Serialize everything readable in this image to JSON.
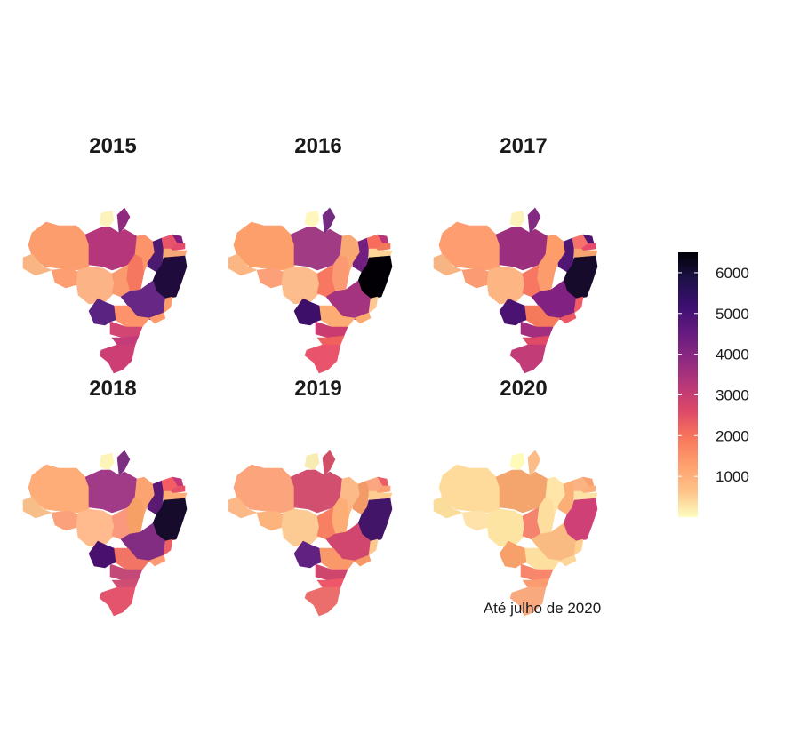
{
  "panels": [
    {
      "year": "2015",
      "fills": [
        "#fcf3bb",
        "#fc9d6d",
        "#f9b584",
        "#fd9e72",
        "#fcb487",
        "#b5367a",
        "#8f2a7f",
        "#f57760",
        "#fc9369",
        "#4d1a72",
        "#e8556b",
        "#821c7c",
        "#e34a6c",
        "#f8a777",
        "#200c3c",
        "#fc9a6f",
        "#662785",
        "#fd9e6a",
        "#fe9a6e",
        "#fd926b",
        "#d24674",
        "#5b2381",
        "#c53b7a",
        "#cd3e75"
      ]
    },
    {
      "year": "2016",
      "fills": [
        "#fff7bc",
        "#fc9f6a",
        "#fcb684",
        "#fca079",
        "#fcbc8b",
        "#a03b84",
        "#732b82",
        "#fb9a72",
        "#f9a873",
        "#721f81",
        "#f76c5c",
        "#b63679",
        "#f2785a",
        "#fed596",
        "#020005",
        "#f77760",
        "#a4347f",
        "#fec790",
        "#fcab70",
        "#fdac73",
        "#ca3c6f",
        "#3e0f68",
        "#f0615d",
        "#e9546c"
      ]
    },
    {
      "year": "2017",
      "fills": [
        "#fcf3bc",
        "#fd9d70",
        "#f8b584",
        "#fb9b73",
        "#fdb584",
        "#9b2f7d",
        "#832b82",
        "#fc9c6c",
        "#fe9c6a",
        "#511574",
        "#f5716b",
        "#4e1373",
        "#e64b6b",
        "#f8a46f",
        "#160b2b",
        "#f77763",
        "#812181",
        "#f15d66",
        "#ec5865",
        "#f57a5c",
        "#a32e7f",
        "#4a1271",
        "#e14964",
        "#c23c78"
      ]
    },
    {
      "year": "2018",
      "fills": [
        "#fdf4b7",
        "#feac78",
        "#f8be8a",
        "#fba27c",
        "#ffbb8d",
        "#a13a87",
        "#7d2f82",
        "#f6a066",
        "#fba471",
        "#5a1a74",
        "#f45d63",
        "#c2387a",
        "#e55168",
        "#fdad76",
        "#160b2b",
        "#f9987c",
        "#822d82",
        "#ed6166",
        "#fe9a73",
        "#f27465",
        "#c34978",
        "#4a106d",
        "#cf4d73",
        "#e5546d"
      ]
    },
    {
      "year": "2019",
      "fills": [
        "#f8ecb3",
        "#fca57c",
        "#fcb987",
        "#fdb37c",
        "#fccb94",
        "#d24f70",
        "#d14e67",
        "#fdae76",
        "#fbba87",
        "#f39b68",
        "#fba581",
        "#e85e67",
        "#fba072",
        "#fecd90",
        "#421569",
        "#f78063",
        "#d0466f",
        "#fec88c",
        "#f79867",
        "#fa9869",
        "#ce466e",
        "#602181",
        "#ee5769",
        "#eb6e6c"
      ]
    },
    {
      "year": "2020",
      "fills": [
        "#fefbb9",
        "#fedb9b",
        "#fbdd9b",
        "#ffe2a9",
        "#fde4a3",
        "#f3a56d",
        "#fbbc85",
        "#fede9e",
        "#ffe6a8",
        "#fbae75",
        "#fbb383",
        "#f8a173",
        "#fdaf7b",
        "#fde2a8",
        "#cf4176",
        "#f5846e",
        "#f9bb82",
        "#fed092",
        "#fed598",
        "#fde0a0",
        "#f7866d",
        "#f8a06a",
        "#fb9c70",
        "#f9a97e"
      ]
    }
  ],
  "caption": "Até julho de 2020",
  "legend": {
    "ticks": [
      {
        "value": 1000,
        "label": "1000"
      },
      {
        "value": 2000,
        "label": "2000"
      },
      {
        "value": 3000,
        "label": "3000"
      },
      {
        "value": 4000,
        "label": "4000"
      },
      {
        "value": 5000,
        "label": "5000"
      },
      {
        "value": 6000,
        "label": "6000"
      }
    ],
    "min": 0,
    "max": 6500,
    "colors": [
      "#fcfdbf",
      "#fec287",
      "#fe9f6d",
      "#f8765c",
      "#de4968",
      "#b73779",
      "#8c2981",
      "#641a80",
      "#3b0f70",
      "#1d1147",
      "#000004"
    ]
  }
}
